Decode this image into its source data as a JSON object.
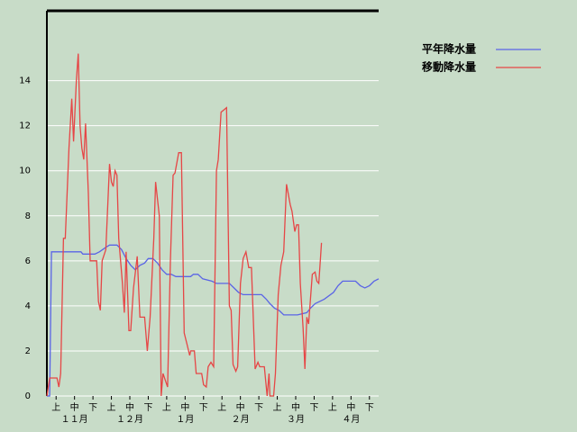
{
  "chart_data": {
    "type": "line",
    "xlim": [
      0,
      180
    ],
    "ylim": [
      0,
      17.1
    ],
    "yticks": [
      0,
      2,
      4,
      6,
      8,
      10,
      12,
      14
    ],
    "grid": true,
    "legend": "top-right",
    "xticks": [
      {
        "value": 5,
        "label": "上"
      },
      {
        "value": 15,
        "label": "中"
      },
      {
        "value": 25,
        "label": "下"
      },
      {
        "value": 35,
        "label": "上"
      },
      {
        "value": 45,
        "label": "中"
      },
      {
        "value": 55,
        "label": "下"
      },
      {
        "value": 65,
        "label": "上"
      },
      {
        "value": 75,
        "label": "中"
      },
      {
        "value": 85,
        "label": "下"
      },
      {
        "value": 95,
        "label": "上"
      },
      {
        "value": 105,
        "label": "中"
      },
      {
        "value": 115,
        "label": "下"
      },
      {
        "value": 125,
        "label": "上"
      },
      {
        "value": 135,
        "label": "中"
      },
      {
        "value": 145,
        "label": "下"
      },
      {
        "value": 155,
        "label": "上"
      },
      {
        "value": 165,
        "label": "中"
      },
      {
        "value": 175,
        "label": "下"
      }
    ],
    "month_labels": [
      {
        "value": 15,
        "label": "１１月"
      },
      {
        "value": 45,
        "label": "１２月"
      },
      {
        "value": 75,
        "label": "１月"
      },
      {
        "value": 105,
        "label": "２月"
      },
      {
        "value": 135,
        "label": "３月"
      },
      {
        "value": 165,
        "label": "４月"
      }
    ],
    "series": [
      {
        "name": "平年降水量",
        "color": "#5a64e6",
        "x": [
          0,
          1.5,
          2.5,
          18.5,
          19.5,
          26,
          28.5,
          32,
          34,
          38,
          40.5,
          43,
          45.5,
          48,
          50.5,
          53,
          55,
          57.5,
          60,
          62.5,
          65,
          67.5,
          70,
          72.5,
          75,
          78,
          79.5,
          82,
          84.5,
          89.5,
          92,
          99,
          101.5,
          104,
          106.5,
          116.5,
          119,
          121,
          123.5,
          126,
          128.5,
          136,
          141,
          143,
          145.5,
          150.5,
          155.5,
          158,
          160.5,
          167.5,
          170,
          172.5,
          175,
          177.5,
          180
        ],
        "values": [
          0,
          0,
          6.4,
          6.4,
          6.3,
          6.3,
          6.4,
          6.6,
          6.7,
          6.7,
          6.5,
          6.1,
          5.8,
          5.6,
          5.8,
          5.9,
          6.1,
          6.1,
          5.9,
          5.6,
          5.4,
          5.4,
          5.3,
          5.3,
          5.3,
          5.3,
          5.4,
          5.4,
          5.2,
          5.1,
          5,
          5,
          4.8,
          4.6,
          4.5,
          4.5,
          4.3,
          4.1,
          3.9,
          3.8,
          3.6,
          3.6,
          3.7,
          3.9,
          4.1,
          4.3,
          4.6,
          4.9,
          5.1,
          5.1,
          4.9,
          4.8,
          4.9,
          5.1,
          5.2
        ]
      },
      {
        "name": "移動降水量",
        "color": "#e64646",
        "x": [
          0,
          1.5,
          5.5,
          6.5,
          7.5,
          9,
          10,
          12,
          13.5,
          14.5,
          16,
          17,
          18,
          19,
          20,
          21,
          22.5,
          23.5,
          27,
          28,
          29,
          30,
          32,
          34,
          35,
          36,
          37,
          38,
          39,
          41,
          42,
          43,
          44.5,
          45.5,
          47,
          49,
          50.5,
          53,
          54.5,
          56,
          58,
          59,
          61,
          62,
          63,
          65.5,
          67,
          68.5,
          69.5,
          71.5,
          73,
          74.5,
          76,
          77.5,
          78,
          80,
          81,
          84,
          85,
          86.5,
          87.5,
          89,
          90.5,
          92,
          93,
          94.5,
          96,
          97.5,
          99,
          100,
          101,
          102.5,
          103.5,
          105,
          106.5,
          108,
          109.5,
          111,
          113,
          114.5,
          115.5,
          118,
          119.5,
          120.5,
          121,
          123,
          124,
          125.5,
          127,
          128.5,
          130,
          132,
          133,
          134.5,
          135.5,
          136.5,
          137.5,
          139,
          140,
          141,
          142,
          144,
          145.5,
          146.5,
          147.5,
          149
        ],
        "values": [
          0,
          0.8,
          0.8,
          0.4,
          1,
          7,
          7,
          11,
          13.2,
          11.3,
          14,
          15.2,
          12,
          11,
          10.5,
          12.1,
          9,
          6,
          6,
          4.2,
          3.8,
          6,
          6.5,
          10.3,
          9.5,
          9.3,
          10,
          9.8,
          7,
          5,
          3.7,
          6.4,
          2.9,
          2.9,
          4.8,
          6.2,
          3.5,
          3.5,
          2,
          3.5,
          7,
          9.5,
          8,
          0,
          1,
          0.4,
          6,
          9.8,
          9.9,
          10.8,
          10.8,
          2.8,
          2.3,
          1.8,
          2,
          2,
          1,
          1,
          0.5,
          0.4,
          1.3,
          1.5,
          1.3,
          10,
          10.5,
          12.6,
          12.7,
          12.8,
          4,
          3.8,
          1.4,
          1.1,
          1.3,
          5,
          6.1,
          6.4,
          5.7,
          5.7,
          1.2,
          1.5,
          1.3,
          1.3,
          0,
          1,
          0,
          0,
          1,
          4.5,
          5.8,
          6.4,
          9.4,
          8.5,
          8.2,
          7.3,
          7.6,
          7.6,
          5,
          3,
          1.2,
          3.5,
          3.2,
          5.4,
          5.5,
          5.1,
          5,
          6.8
        ]
      }
    ]
  }
}
